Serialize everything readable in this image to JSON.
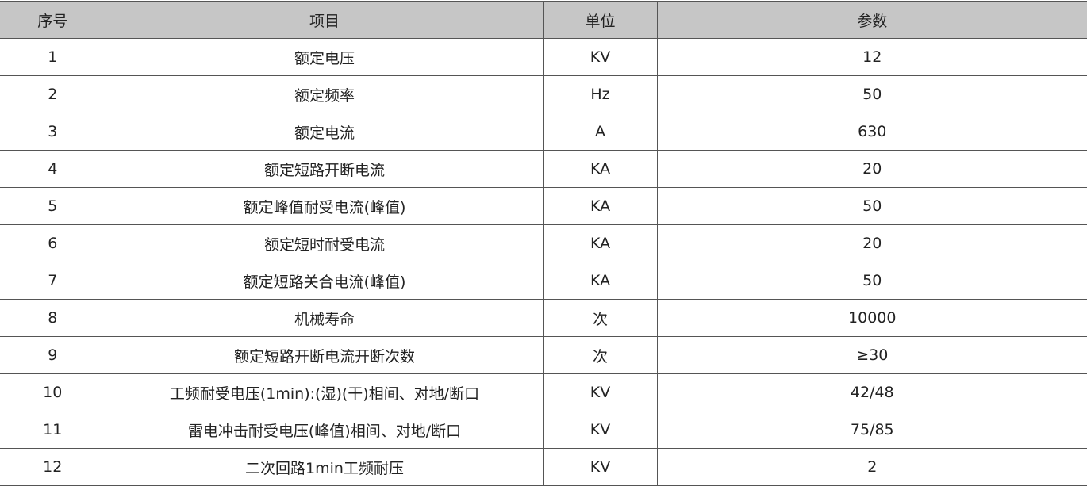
{
  "table": {
    "headers": [
      "序号",
      "项目",
      "单位",
      "参数"
    ],
    "rows": [
      [
        "1",
        "额定电压",
        "KV",
        "12"
      ],
      [
        "2",
        "额定频率",
        "Hz",
        "50"
      ],
      [
        "3",
        "额定电流",
        "A",
        "630"
      ],
      [
        "4",
        "额定短路开断电流",
        "KA",
        "20"
      ],
      [
        "5",
        "额定峰值耐受电流(峰值)",
        "KA",
        "50"
      ],
      [
        "6",
        "额定短时耐受电流",
        "KA",
        "20"
      ],
      [
        "7",
        "额定短路关合电流(峰值)",
        "KA",
        "50"
      ],
      [
        "8",
        "机械寿命",
        "次",
        "10000"
      ],
      [
        "9",
        "额定短路开断电流开断次数",
        "次",
        "≥30"
      ],
      [
        "10",
        "工频耐受电压(1min):(湿)(干)相间、对地/断口",
        "KV",
        "42/48"
      ],
      [
        "11",
        "雷电冲击耐受电压(峰值)相间、对地/断口",
        "KV",
        "75/85"
      ],
      [
        "12",
        "二次回路1min工频耐压",
        "KV",
        "2"
      ]
    ]
  }
}
